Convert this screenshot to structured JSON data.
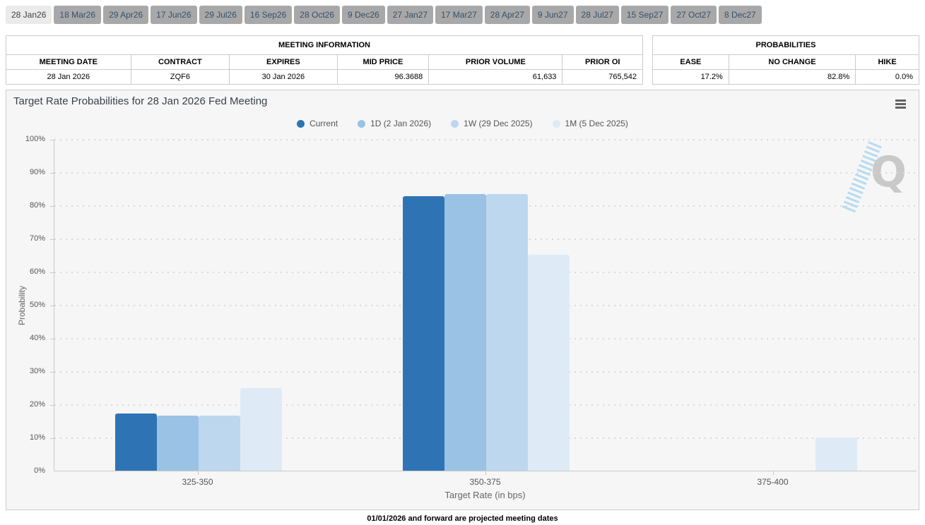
{
  "tabs": {
    "items": [
      {
        "label": "28 Jan26",
        "active": true
      },
      {
        "label": "18 Mar26",
        "active": false
      },
      {
        "label": "29 Apr26",
        "active": false
      },
      {
        "label": "17 Jun26",
        "active": false
      },
      {
        "label": "29 Jul26",
        "active": false
      },
      {
        "label": "16 Sep26",
        "active": false
      },
      {
        "label": "28 Oct26",
        "active": false
      },
      {
        "label": "9 Dec26",
        "active": false
      },
      {
        "label": "27 Jan27",
        "active": false
      },
      {
        "label": "17 Mar27",
        "active": false
      },
      {
        "label": "28 Apr27",
        "active": false
      },
      {
        "label": "9 Jun27",
        "active": false
      },
      {
        "label": "28 Jul27",
        "active": false
      },
      {
        "label": "15 Sep27",
        "active": false
      },
      {
        "label": "27 Oct27",
        "active": false
      },
      {
        "label": "8 Dec27",
        "active": false
      }
    ]
  },
  "meeting_info": {
    "title": "MEETING INFORMATION",
    "columns": [
      "MEETING DATE",
      "CONTRACT",
      "EXPIRES",
      "MID PRICE",
      "PRIOR VOLUME",
      "PRIOR OI"
    ],
    "row": [
      "28 Jan 2026",
      "ZQF6",
      "30 Jan 2026",
      "96.3688",
      "61,633",
      "765,542"
    ]
  },
  "probabilities": {
    "title": "PROBABILITIES",
    "columns": [
      "EASE",
      "NO CHANGE",
      "HIKE"
    ],
    "row": [
      "17.2%",
      "82.8%",
      "0.0%"
    ]
  },
  "chart_data": {
    "type": "bar",
    "title": "Target Rate Probabilities for 28 Jan 2026 Fed Meeting",
    "categories": [
      "325-350",
      "350-375",
      "375-400"
    ],
    "series": [
      {
        "name": "Current",
        "color": "#2E74B5",
        "values": [
          17.2,
          82.8,
          0
        ]
      },
      {
        "name": "1D (2 Jan 2026)",
        "color": "#9AC2E5",
        "values": [
          16.5,
          83.5,
          0
        ]
      },
      {
        "name": "1W (29 Dec 2025)",
        "color": "#BDD7EE",
        "values": [
          16.5,
          83.5,
          0
        ]
      },
      {
        "name": "1M (5 Dec 2025)",
        "color": "#DEEBF7",
        "values": [
          24.9,
          65.2,
          9.9
        ]
      }
    ],
    "xlabel": "Target Rate (in bps)",
    "ylabel": "Probability",
    "ylim": [
      0,
      100
    ],
    "ytick_step": 10,
    "yticks": [
      "0%",
      "10%",
      "20%",
      "30%",
      "40%",
      "50%",
      "60%",
      "70%",
      "80%",
      "90%",
      "100%"
    ],
    "grid": "dotted-horizontal",
    "legend_position": "top-center"
  },
  "icons": {
    "chart_menu": "hamburger-icon"
  },
  "watermark": "Q",
  "footnote": "01/01/2026 and forward are projected meeting dates",
  "colors": {
    "accent_line": "#4f81bd",
    "panel_bg": "#f6f6f6",
    "tab_active_bg": "#ebebeb",
    "tab_bg": "#a8a8a8"
  }
}
